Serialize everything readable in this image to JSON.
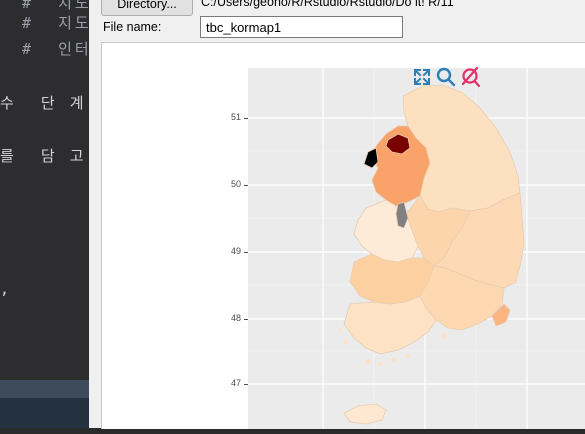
{
  "editor": {
    "lines": [
      {
        "text": "#  지도",
        "cls": "comment"
      },
      {
        "text": "#  인터",
        "cls": "comment"
      },
      {
        "text": "수  단 계",
        "cls": ""
      },
      {
        "text": "를  담 고",
        "cls": ""
      },
      {
        "text": ",",
        "cls": ""
      }
    ]
  },
  "dialog": {
    "directory_button": "Directory...",
    "directory_path": "C:/Users/geoho/R/Rstudio/Rstudio/Do it! R/11",
    "file_name_label": "File name:",
    "file_name_value": "tbc_kormap1"
  },
  "map": {
    "y_ticks": [
      "51",
      "50",
      "49",
      "48",
      "47"
    ],
    "toolbar": [
      {
        "name": "zoom-extents-icon",
        "color": "#2e7fb3"
      },
      {
        "name": "magnifier-icon",
        "color": "#2e7fb3"
      },
      {
        "name": "no-selection-icon",
        "color": "#e0306d"
      }
    ],
    "colors": {
      "seoul": "#7a0000",
      "gyeonggi": "#f9a26a",
      "gangwon": "#fde0c0",
      "chungbuk": "#fdd5ad",
      "chungnam": "#fdebd8",
      "sejong": "#808080",
      "gyeongbuk": "#fdd9b6",
      "jeonbuk": "#fdd0a2",
      "jeonnam": "#fde2c5",
      "gyeongnam": "#fdd8b1",
      "busan": "#fcb582",
      "jeju": "#fee8d1"
    }
  }
}
